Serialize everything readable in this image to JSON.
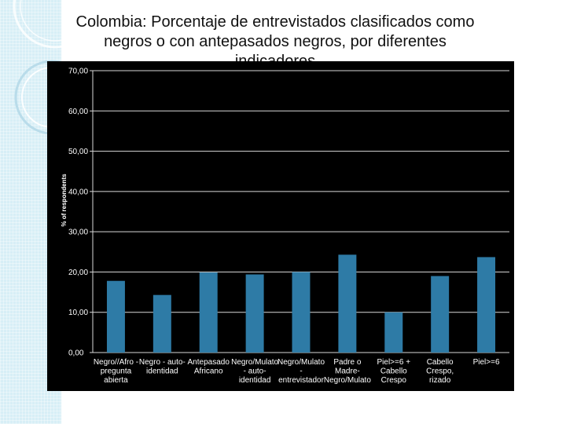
{
  "slide": {
    "title": "Colombia: Porcentaje de entrevistados clasificados como negros o con antepasados negros, por diferentes indicadores"
  },
  "chart_data": {
    "type": "bar",
    "ylabel": "% of respondents",
    "xlabel": "",
    "ylim": [
      0,
      70
    ],
    "yticks": [
      "0,00",
      "10,00",
      "20,00",
      "30,00",
      "40,00",
      "50,00",
      "60,00",
      "70,00"
    ],
    "grid": true,
    "legend": "none",
    "categories": [
      "Negro/Afro - pregunta abierta",
      "Negro - auto-identidad",
      "Antepasado Africano",
      "Negro/Mulato - auto-identidad",
      "Negro/Mulato - entrevistador",
      "Padre o Madre-Negro/Mulato",
      "Piel>=6 + Cabello Crespo",
      "Cabello Crespo, rizado",
      "Piel>=6"
    ],
    "category_lines": [
      [
        "Negro//Afro -",
        "pregunta",
        "abierta"
      ],
      [
        "Negro - auto-",
        "identidad"
      ],
      [
        "Antepasado",
        "Africano"
      ],
      [
        "Negro/Mulato",
        "- auto-",
        "identidad"
      ],
      [
        "Negro/Mulato",
        "-",
        "entrevistador"
      ],
      [
        "Padre o",
        "Madre-",
        "Negro/Mulato"
      ],
      [
        "Piel>=6 +",
        "Cabello",
        "Crespo"
      ],
      [
        "Cabello",
        "Crespo,",
        "rizado"
      ],
      [
        "Piel>=6"
      ]
    ],
    "values": [
      17.8,
      14.3,
      19.9,
      19.4,
      20.0,
      24.3,
      10.0,
      19.0,
      23.7
    ],
    "colors": {
      "bar": "#2e7ba6",
      "plot_background": "#000000",
      "gridline": "#d9d9d9",
      "text": "#ffffff"
    }
  }
}
